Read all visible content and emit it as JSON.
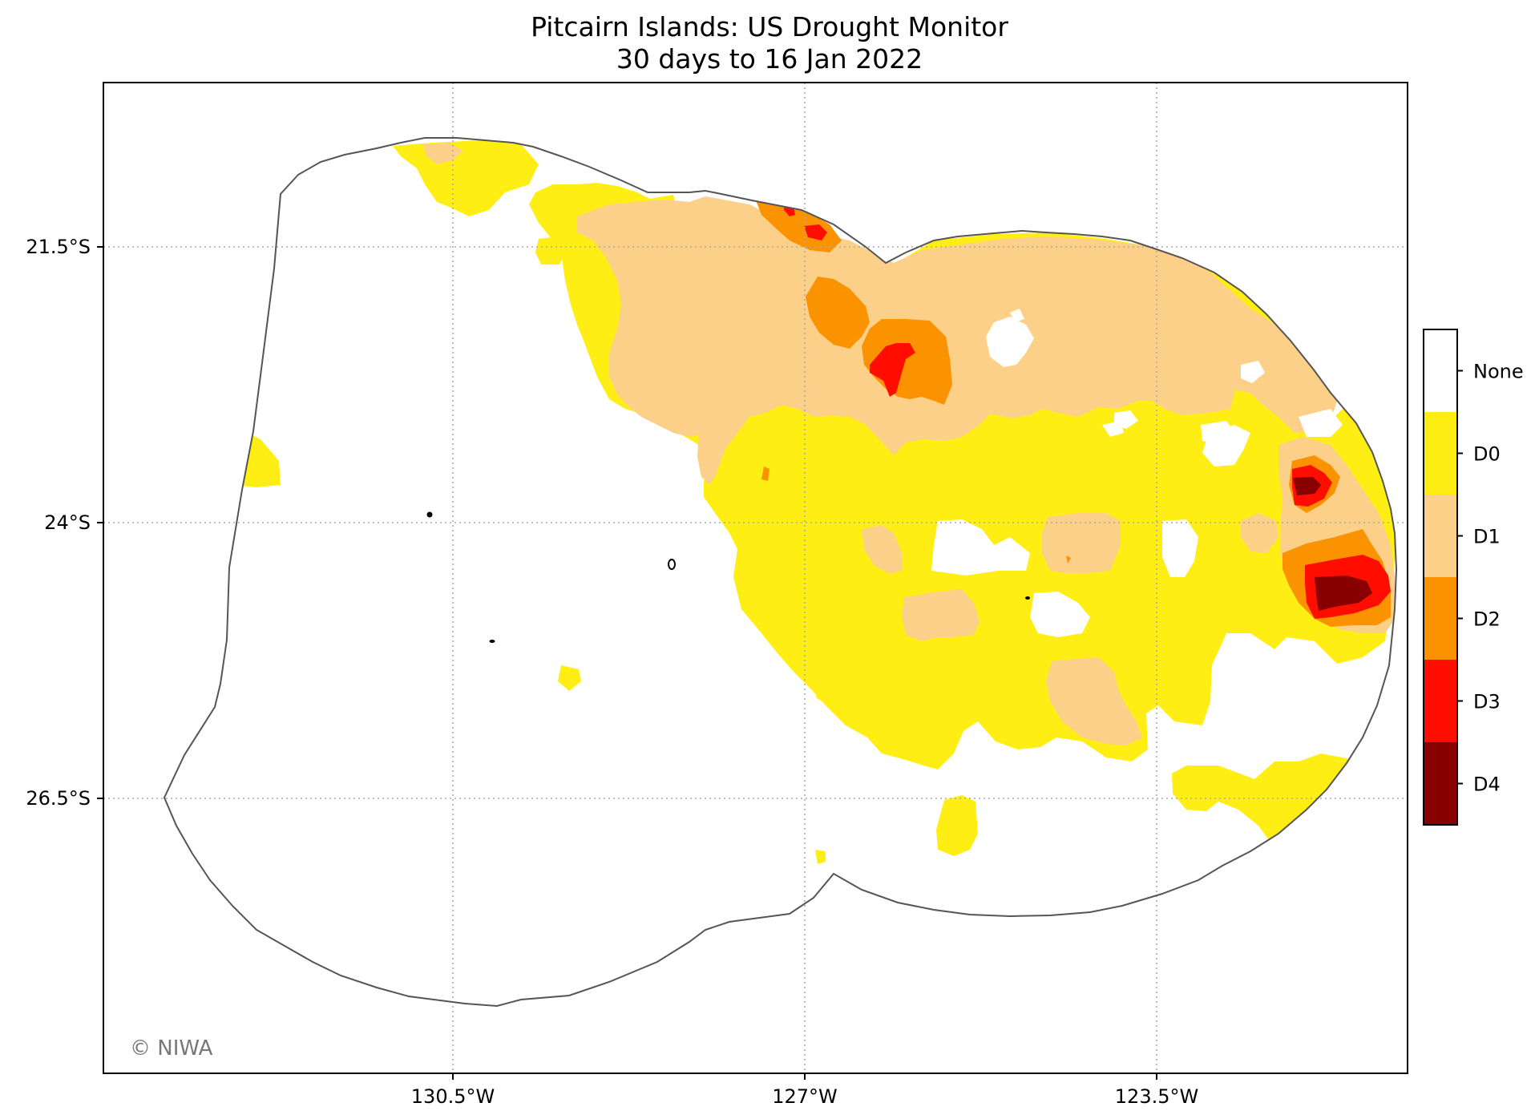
{
  "title": {
    "line1": "Pitcairn Islands: US Drought Monitor",
    "line2": "30 days to 16 Jan 2022"
  },
  "axes": {
    "lon_ticks": [
      "130.5°W",
      "127°W",
      "123.5°W"
    ],
    "lat_ticks": [
      "21.5°S",
      "24°S",
      "26.5°S"
    ],
    "gridlines": "dotted"
  },
  "credit": "© NIWA",
  "legend": {
    "placement": "right",
    "categories": [
      {
        "label": "None",
        "color": "#ffffff"
      },
      {
        "label": "D0",
        "color": "#ffee14"
      },
      {
        "label": "D1",
        "color": "#fdd08a"
      },
      {
        "label": "D2",
        "color": "#fb9300"
      },
      {
        "label": "D3",
        "color": "#ff0d00"
      },
      {
        "label": "D4",
        "color": "#880000"
      }
    ]
  },
  "colors": {
    "eez_outline": "#555555",
    "island": "#000000"
  }
}
